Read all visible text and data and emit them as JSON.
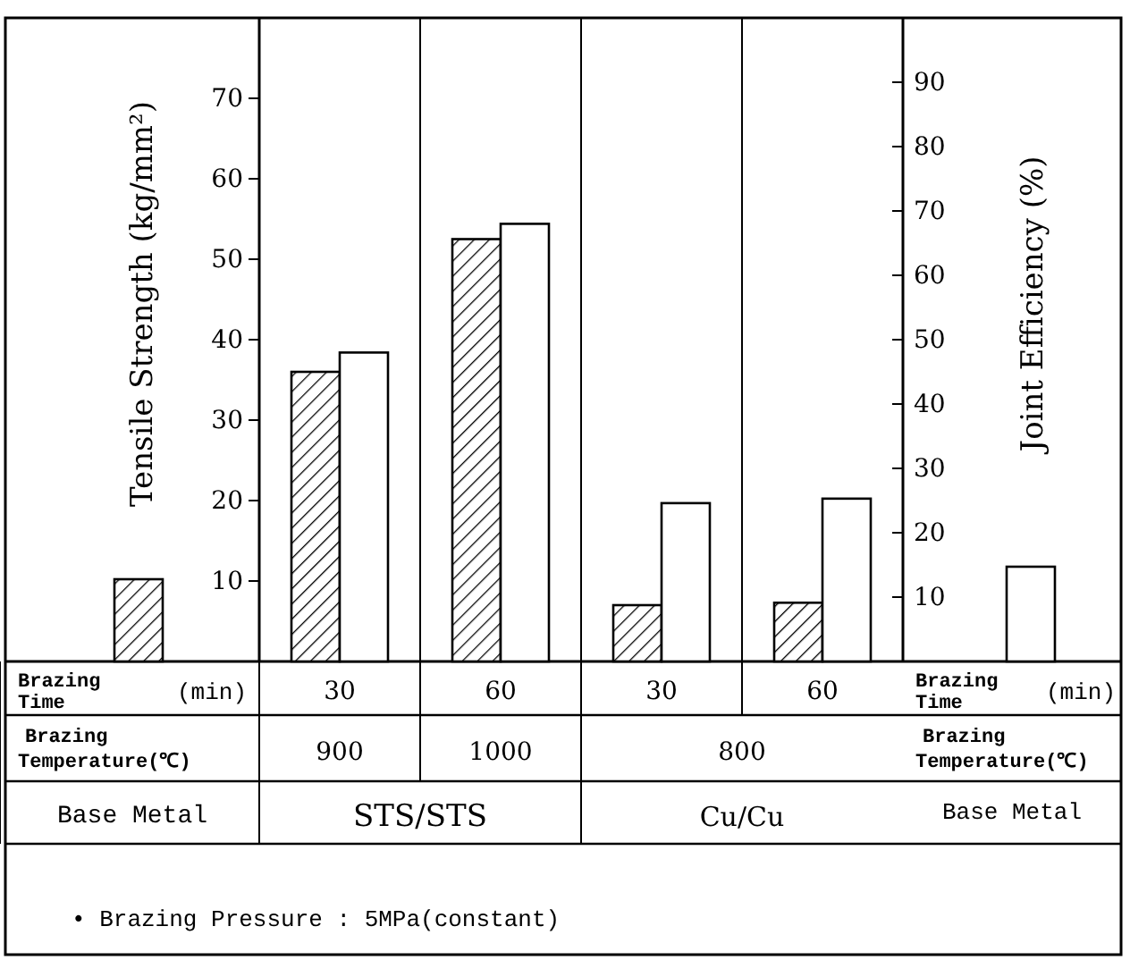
{
  "chart_data": {
    "type": "bar",
    "categories": [
      "30",
      "60",
      "30",
      "60"
    ],
    "xlabel": "Brazing Time (min)",
    "ylabel": "Tensile Strength (kg/mm²)",
    "y2label": "Joint Efficiency (%)",
    "series": [
      {
        "color": "#000000",
        "values": [
          36,
          52.5,
          7,
          7.3
        ]
      },
      {
        "color": "#ffffff",
        "axis": "y2",
        "values": [
          48,
          68,
          24.6,
          25.3
        ]
      }
    ],
    "ylim": [
      0,
      80
    ],
    "yticks": [
      10,
      20,
      30,
      40,
      50,
      60,
      70
    ],
    "y2lim": [
      0,
      100
    ],
    "y2ticks": [
      10,
      20,
      30,
      40,
      50,
      60,
      70,
      80,
      90
    ],
    "annotations": [
      "Brazing Temperature(℃)",
      "900",
      "1000",
      "800",
      "Base Metal",
      "STS/STS",
      "Cu/Cu",
      "• Brazing Pressure : 5MPa(constant)"
    ],
    "grid": false
  }
}
